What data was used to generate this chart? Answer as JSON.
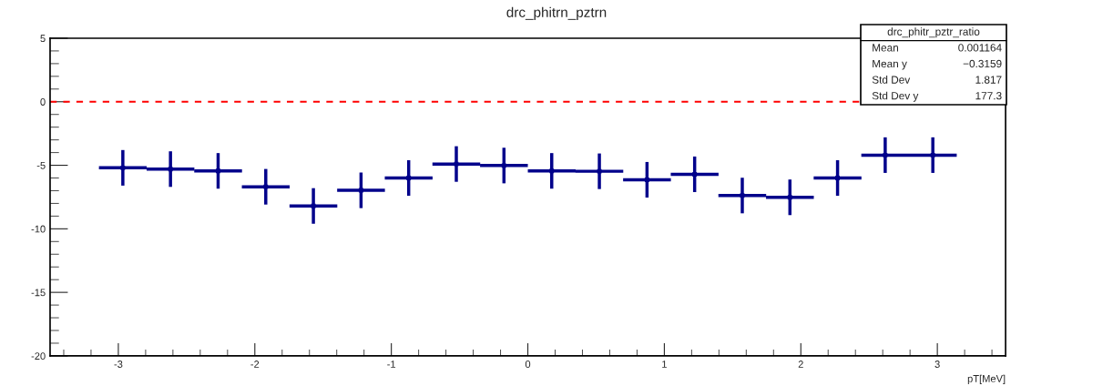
{
  "chart_data": {
    "type": "scatter",
    "title": "drc_phitrn_pztrn",
    "xlabel": "pT[MeV]",
    "x": [
      -2.967,
      -2.618,
      -2.269,
      -1.92,
      -1.571,
      -1.222,
      -0.873,
      -0.524,
      -0.175,
      0.175,
      0.524,
      0.873,
      1.222,
      1.571,
      1.92,
      2.269,
      2.618,
      2.967
    ],
    "series": [
      {
        "color": "#00008b",
        "values": [
          -5.2,
          -5.3,
          -5.44,
          -6.69,
          -8.2,
          -6.97,
          -6.0,
          -4.9,
          -5.02,
          -5.44,
          -5.47,
          -6.14,
          -5.71,
          -7.38,
          -7.52,
          -6.0,
          -4.2,
          -4.2
        ],
        "errors": [
          1.4,
          1.4,
          1.4,
          1.4,
          1.4,
          1.4,
          1.4,
          1.4,
          1.4,
          1.4,
          1.4,
          1.4,
          1.4,
          1.4,
          1.4,
          1.4,
          1.4,
          1.4
        ],
        "xerrors": [
          0.175,
          0.175,
          0.175,
          0.175,
          0.175,
          0.175,
          0.175,
          0.175,
          0.175,
          0.175,
          0.175,
          0.175,
          0.175,
          0.175,
          0.175,
          0.175,
          0.175,
          0.175
        ]
      }
    ],
    "xlim": [
      -3.5,
      3.5
    ],
    "xticks": [
      -3,
      -2,
      -1,
      0,
      1,
      2,
      3
    ],
    "ylim": [
      -20,
      5
    ],
    "yticks": [
      -20,
      -15,
      -10,
      -5,
      0,
      5
    ],
    "ref_lines": [
      {
        "axis": "y",
        "value": 0,
        "color": "#ff0000",
        "line_style": "dashed"
      }
    ],
    "annotations": [
      "drc_phitr_pztr_ratio",
      "Mean",
      "0.001164",
      "Mean y",
      "−0.3159",
      "Std Dev",
      "1.817",
      "Std Dev y",
      "177.3"
    ],
    "grid": false
  }
}
